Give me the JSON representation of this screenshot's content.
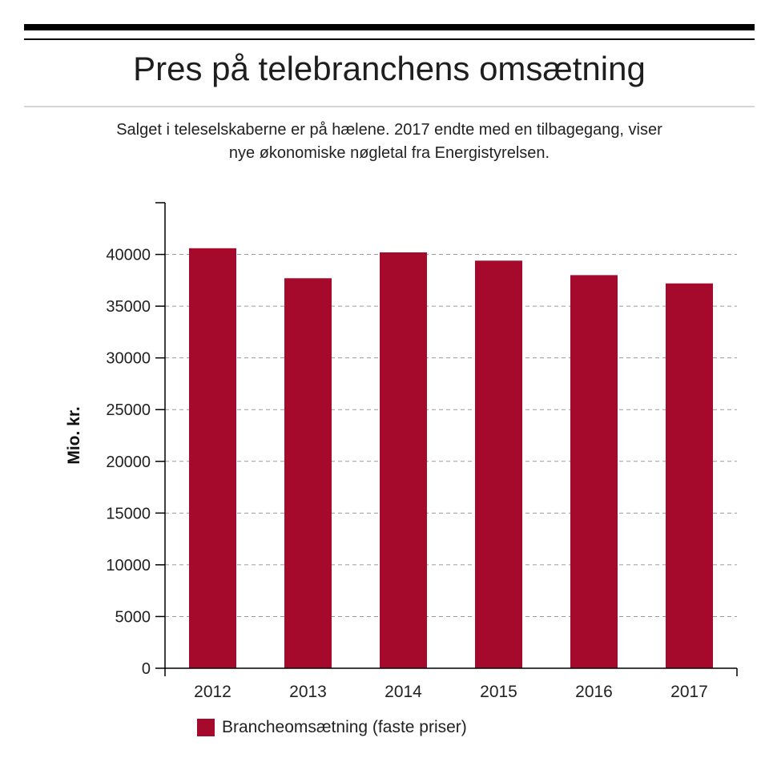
{
  "header": {
    "title": "Pres på telebranchens omsætning",
    "subtitle_line1": "Salget i teleselskaberne er på hælene. 2017 endte med en tilbagegang, viser",
    "subtitle_line2": "nye økonomiske nøgletal fra Energistyrelsen."
  },
  "colors": {
    "bar": "#a50a2c",
    "grid": "#9a9a9a",
    "axis": "#000000"
  },
  "chart_data": {
    "type": "bar",
    "categories": [
      "2012",
      "2013",
      "2014",
      "2015",
      "2016",
      "2017"
    ],
    "series": [
      {
        "name": "Brancheomsætning (faste priser)",
        "values": [
          40600,
          37700,
          40200,
          39400,
          38000,
          37200
        ]
      }
    ],
    "ylabel": "Mio. kr.",
    "xlabel": "",
    "ylim": [
      0,
      45000
    ],
    "yticks": [
      0,
      5000,
      10000,
      15000,
      20000,
      25000,
      30000,
      35000,
      40000
    ],
    "grid": true,
    "legend_position": "bottom-left"
  }
}
